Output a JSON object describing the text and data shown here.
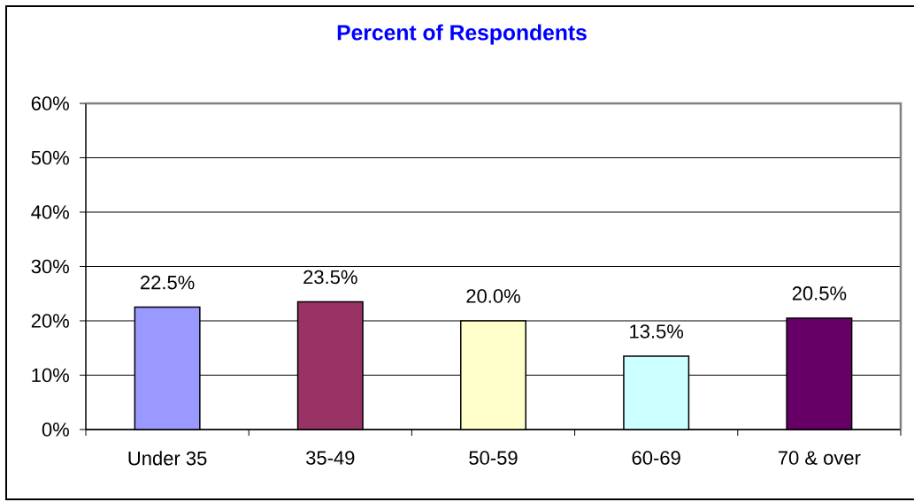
{
  "chart_data": {
    "type": "bar",
    "title": "Percent of Respondents",
    "categories": [
      "Under 35",
      "35-49",
      "50-59",
      "60-69",
      "70 & over"
    ],
    "values": [
      22.5,
      23.5,
      20.0,
      13.5,
      20.5
    ],
    "colors": [
      "#9999ff",
      "#993366",
      "#ffffcc",
      "#ccffff",
      "#660066"
    ],
    "value_labels": [
      "22.5%",
      "23.5%",
      "20.0%",
      "13.5%",
      "20.5%"
    ],
    "ylim": [
      0,
      60
    ],
    "yticks": [
      {
        "value": 0,
        "label": "0%"
      },
      {
        "value": 10,
        "label": "10%"
      },
      {
        "value": 20,
        "label": "20%"
      },
      {
        "value": 30,
        "label": "30%"
      },
      {
        "value": 40,
        "label": "40%"
      },
      {
        "value": 50,
        "label": "50%"
      },
      {
        "value": 60,
        "label": "60%"
      }
    ],
    "grid": "y"
  }
}
